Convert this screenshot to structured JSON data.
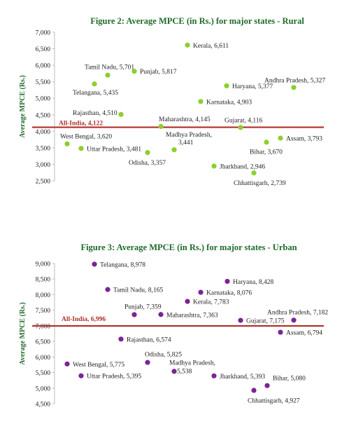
{
  "chart_data": [
    {
      "type": "scatter",
      "title": "Figure 2: Average MPCE (in Rs.) for major  states - Rural",
      "ylabel": "Average  MPCE (Rs.)",
      "ylim": [
        2500,
        7000
      ],
      "yticks": [
        "7,000",
        "6,500",
        "6,000",
        "5,500",
        "5,000",
        "4,500",
        "4,000",
        "3,500",
        "3,000",
        "2,500"
      ],
      "grid": false,
      "point_color": "#8ccf2e",
      "reference": {
        "label": "All-India, 4,122",
        "value": 4122,
        "color": "#b0302a"
      },
      "points": [
        {
          "label": "Kerala, 6,611",
          "value": 6611
        },
        {
          "label": "Tamil Nadu, 5,701",
          "value": 5701
        },
        {
          "label": "Punjab, 5,817",
          "value": 5817
        },
        {
          "label": "Telangana,  5,435",
          "value": 5435
        },
        {
          "label": "Andhra Pradesh, 5,327",
          "value": 5327
        },
        {
          "label": "Haryana, 5,377",
          "value": 5377
        },
        {
          "label": "Karnataka, 4,903",
          "value": 4903
        },
        {
          "label": "Rajasthan, 4,510",
          "value": 4510
        },
        {
          "label": "Maharashtra, 4,145",
          "value": 4145
        },
        {
          "label": "Gujarat, 4,116",
          "value": 4116
        },
        {
          "label": "West Bengal,  3,620",
          "value": 3620
        },
        {
          "label": "Uttar Pradesh, 3,481",
          "value": 3481
        },
        {
          "label": "Odisha, 3,357",
          "value": 3357
        },
        {
          "label": "Madhya Pradesh,",
          "label2": "3,441",
          "value": 3441
        },
        {
          "label": "Jharkhand, 2,946",
          "value": 2946
        },
        {
          "label": "Chhattisgarh, 2,739",
          "value": 2739
        },
        {
          "label": "Bihar, 3,670",
          "value": 3670
        },
        {
          "label": "Assam, 3,793",
          "value": 3793
        }
      ]
    },
    {
      "type": "scatter",
      "title": "Figure 3: Average MPCE (in  Rs.) for major  states - Urban",
      "ylabel": "Average MPCE (Rs.)",
      "ylim": [
        4500,
        9000
      ],
      "yticks": [
        "9,000",
        "8,500",
        "8,000",
        "7,500",
        "7,000",
        "6,500",
        "6,000",
        "5,500",
        "5,000",
        "4,500"
      ],
      "grid": false,
      "point_color": "#7a2496",
      "reference": {
        "label": "All-India, 6,996",
        "value": 6996,
        "color": "#b0302a"
      },
      "points": [
        {
          "label": "Telangana, 8,978",
          "value": 8978
        },
        {
          "label": "Tamil Nadu, 8,165",
          "value": 8165
        },
        {
          "label": "Haryana, 8,428",
          "value": 8428
        },
        {
          "label": "Karnataka, 8,076",
          "value": 8076
        },
        {
          "label": "Kerala, 7,783",
          "value": 7783
        },
        {
          "label": "Punjab, 7,359",
          "value": 7359
        },
        {
          "label": "Maharashtra, 7,363",
          "value": 7363
        },
        {
          "label": "Andhra Pradesh, 7,182",
          "value": 7182
        },
        {
          "label": "Gujarat, 7,175",
          "value": 7175
        },
        {
          "label": "Assam, 6,794",
          "value": 6794
        },
        {
          "label": "Rajasthan, 6,574",
          "value": 6574
        },
        {
          "label": "Odisha, 5,825",
          "value": 5825
        },
        {
          "label": "West Bengal, 5,775",
          "value": 5775
        },
        {
          "label": "Madhya Pradesh,",
          "label2": "5,538",
          "value": 5538
        },
        {
          "label": "Uttar Pradesh, 5,395",
          "value": 5395
        },
        {
          "label": "Jharkhand, 5,393",
          "value": 5393
        },
        {
          "label": "Bihar, 5,080",
          "value": 5080
        },
        {
          "label": "Chhattisgarh, 4,927",
          "value": 4927
        }
      ]
    }
  ]
}
